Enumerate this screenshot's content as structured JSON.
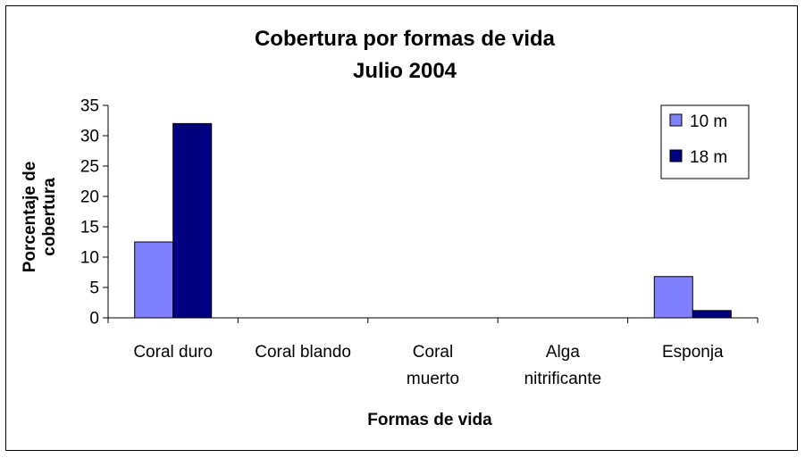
{
  "chart_data": {
    "type": "bar",
    "title": [
      "Cobertura por formas de vida",
      "Julio 2004"
    ],
    "xlabel": "Formas de vida",
    "ylabel": [
      "Porcentaje de",
      "cobertura"
    ],
    "categories": [
      [
        "Coral duro"
      ],
      [
        "Coral blando"
      ],
      [
        "Coral",
        "muerto"
      ],
      [
        "Alga",
        "nitrificante"
      ],
      [
        "Esponja"
      ]
    ],
    "series": [
      {
        "name": "10 m",
        "color": "#8080ff",
        "values": [
          12.5,
          0,
          0,
          0,
          6.8
        ]
      },
      {
        "name": "18 m",
        "color": "#000080",
        "values": [
          32,
          0,
          0,
          0,
          1.2
        ]
      }
    ],
    "ylim": [
      0,
      35
    ],
    "yticks": [
      0,
      5,
      10,
      15,
      20,
      25,
      30,
      35
    ],
    "grid": false,
    "legend_position": "top-right"
  }
}
